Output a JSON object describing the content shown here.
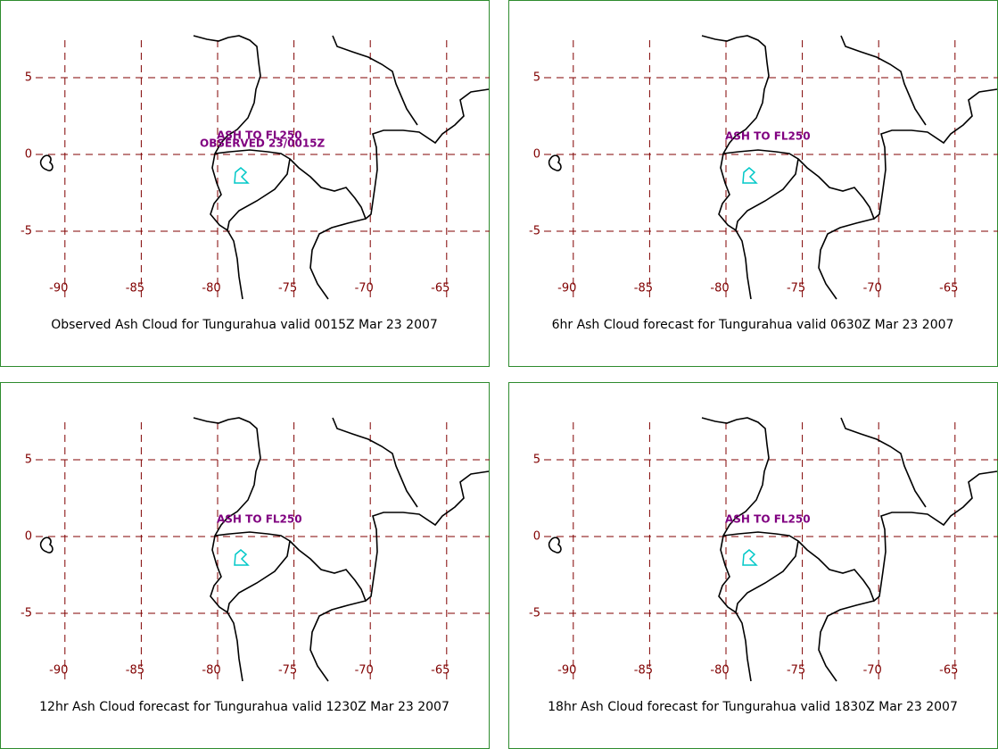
{
  "panels": [
    {
      "caption": "Observed Ash Cloud for Tungurahua valid 0015Z Mar 23 2007",
      "annotations": [
        "ASH TO FL250",
        "OBSERVED 23/0015Z"
      ],
      "xticks": [
        -90,
        -85,
        -80,
        -75,
        -70,
        -65
      ],
      "yticks": [
        5,
        0,
        -5
      ]
    },
    {
      "caption": "6hr Ash Cloud forecast for Tungurahua valid 0630Z Mar 23 2007",
      "annotations": [
        "ASH TO FL250"
      ],
      "xticks": [
        -90,
        -85,
        -80,
        -75,
        -70,
        -65
      ],
      "yticks": [
        5,
        0,
        -5
      ]
    },
    {
      "caption": "12hr Ash Cloud forecast for Tungurahua valid 1230Z Mar 23 2007",
      "annotations": [
        "ASH TO FL250"
      ],
      "xticks": [
        -90,
        -85,
        -80,
        -75,
        -70,
        -65
      ],
      "yticks": [
        5,
        0,
        -5
      ]
    },
    {
      "caption": "18hr Ash Cloud forecast for Tungurahua valid 1830Z Mar 23 2007",
      "annotations": [
        "ASH TO FL250"
      ],
      "xticks": [
        -90,
        -85,
        -80,
        -75,
        -70,
        -65
      ],
      "yticks": [
        5,
        0,
        -5
      ]
    }
  ]
}
